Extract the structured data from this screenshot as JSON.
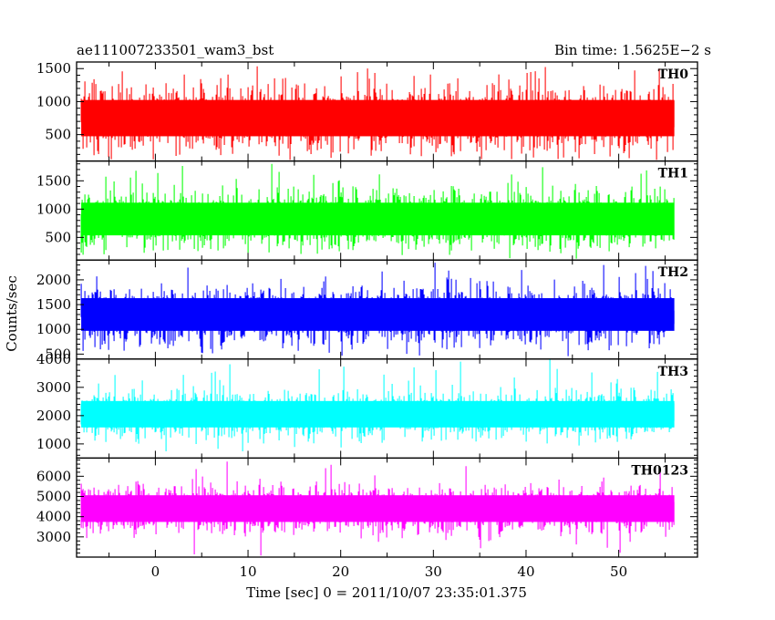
{
  "chart_data": {
    "type": "line",
    "style": "step",
    "title_left": "ae111007233501_wam3_bst",
    "title_right": "Bin time: 1.5625E−2 s",
    "xlabel": "Time [sec] 0 = 2011/10/07 23:35:01.375",
    "ylabel": "Counts/sec",
    "xlim": [
      -8.5,
      58.5
    ],
    "x_data_range": [
      -8.0,
      56.0
    ],
    "xticks": [
      0,
      10,
      20,
      30,
      40,
      50
    ],
    "xtick_labels": [
      "0",
      "10",
      "20",
      "30",
      "40",
      "50"
    ],
    "x_bin_width": 0.015625,
    "grid": false,
    "legend": "none",
    "panels": [
      {
        "name": "TH0",
        "color": "#ff0000",
        "ylim": [
          100,
          1600
        ],
        "yticks": [
          500,
          1000,
          1500
        ],
        "ytick_labels": [
          "500",
          "1000",
          "1500"
        ],
        "typical_range": [
          250,
          1250
        ],
        "min": 120,
        "max": 1580
      },
      {
        "name": "TH1",
        "color": "#00ff00",
        "ylim": [
          100,
          1850
        ],
        "yticks": [
          500,
          1000,
          1500
        ],
        "ytick_labels": [
          "500",
          "1000",
          "1500"
        ],
        "typical_range": [
          300,
          1350
        ],
        "min": 120,
        "max": 1800
      },
      {
        "name": "TH2",
        "color": "#0000ff",
        "ylim": [
          400,
          2400
        ],
        "yticks": [
          500,
          1000,
          1500,
          2000
        ],
        "ytick_labels": [
          "500",
          "1000",
          "1500",
          "2000"
        ],
        "typical_range": [
          700,
          1900
        ],
        "min": 430,
        "max": 2400
      },
      {
        "name": "TH3",
        "color": "#00ffff",
        "ylim": [
          500,
          4000
        ],
        "yticks": [
          1000,
          2000,
          3000,
          4000
        ],
        "ytick_labels": [
          "1000",
          "2000",
          "3000",
          "4000"
        ],
        "typical_range": [
          1200,
          2900
        ],
        "min": 700,
        "max": 4000
      },
      {
        "name": "TH0123",
        "color": "#ff00ff",
        "ylim": [
          2000,
          6900
        ],
        "yticks": [
          3000,
          4000,
          5000,
          6000
        ],
        "ytick_labels": [
          "3000",
          "4000",
          "5000",
          "6000"
        ],
        "typical_range": [
          3200,
          5600
        ],
        "min": 2050,
        "max": 6900
      }
    ]
  }
}
